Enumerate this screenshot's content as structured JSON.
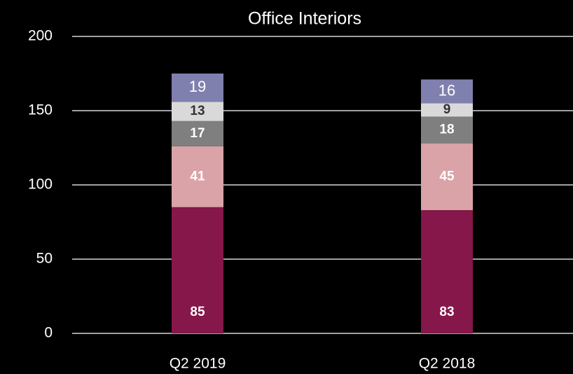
{
  "chart_data": {
    "type": "stacked_bar",
    "title": "Office Interiors",
    "categories": [
      "Q2 2019",
      "Q2 2018"
    ],
    "series": [
      {
        "color": "#85174a",
        "label_color": "#ffffff",
        "label_bold": true,
        "values": [
          85,
          83
        ]
      },
      {
        "color": "#d9a3a8",
        "label_color": "#ffffff",
        "label_bold": true,
        "values": [
          41,
          45
        ]
      },
      {
        "color": "#7f7f7f",
        "label_color": "#ffffff",
        "label_bold": true,
        "values": [
          17,
          18
        ]
      },
      {
        "color": "#d9d9d9",
        "label_color": "#333333",
        "label_bold": true,
        "values": [
          13,
          9
        ]
      },
      {
        "color": "#8080ae",
        "label_color": "#ffffff",
        "label_bold": false,
        "values": [
          19,
          16
        ]
      }
    ],
    "ylim": [
      0,
      200
    ],
    "yticks": [
      0,
      50,
      100,
      150,
      200
    ],
    "grid": true
  }
}
